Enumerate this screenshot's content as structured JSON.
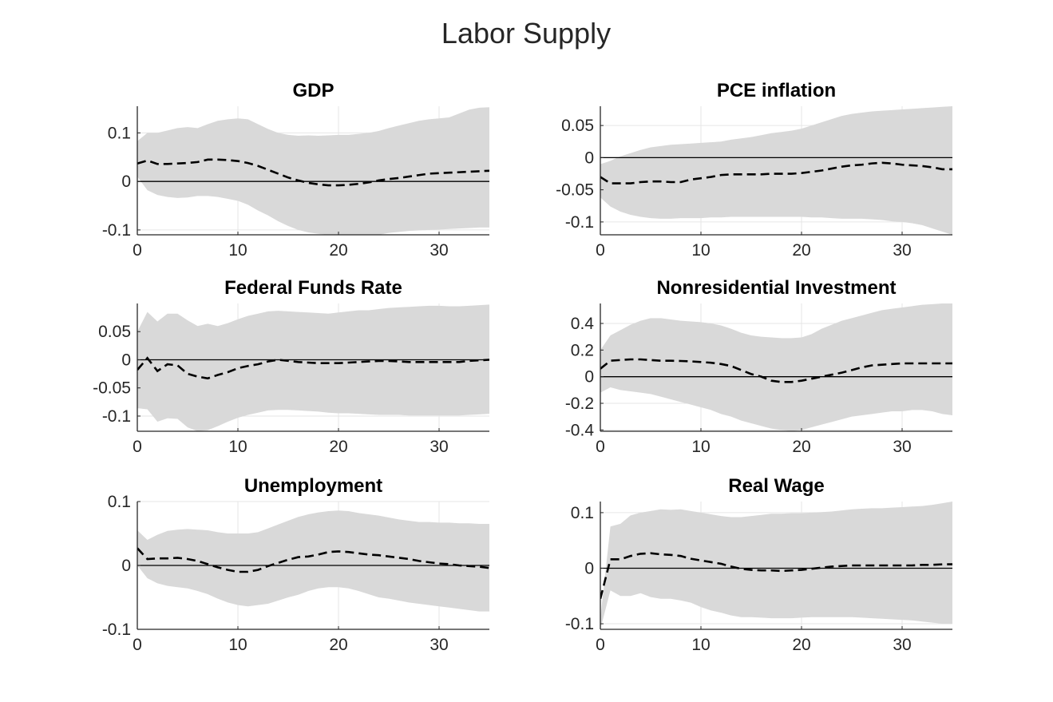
{
  "figure": {
    "title": "Labor Supply"
  },
  "colors": {
    "band": "#d9d9d9",
    "median": "#000000",
    "zero_line": "#000000",
    "grid": "#e6e6e6",
    "axis": "#262626"
  },
  "chart_data": [
    {
      "type": "area",
      "title": "GDP",
      "xlabel": "",
      "ylabel": "",
      "xlim": [
        0,
        35
      ],
      "ylim": [
        -0.11,
        0.155
      ],
      "xticks": [
        0,
        10,
        20,
        30
      ],
      "xtick_labels": [
        "0",
        "10",
        "20",
        "30"
      ],
      "yticks": [
        -0.1,
        0,
        0.1
      ],
      "ytick_labels": [
        "-0.1",
        "0",
        "0.1"
      ],
      "grid": true,
      "x": [
        0,
        1,
        2,
        3,
        4,
        5,
        6,
        7,
        8,
        9,
        10,
        11,
        12,
        13,
        14,
        15,
        16,
        17,
        18,
        19,
        20,
        21,
        22,
        23,
        24,
        25,
        26,
        27,
        28,
        29,
        30,
        31,
        32,
        33,
        34,
        35
      ],
      "median": [
        0.037,
        0.043,
        0.036,
        0.036,
        0.037,
        0.038,
        0.04,
        0.045,
        0.045,
        0.044,
        0.042,
        0.038,
        0.032,
        0.024,
        0.016,
        0.008,
        0.002,
        -0.003,
        -0.006,
        -0.008,
        -0.008,
        -0.007,
        -0.005,
        -0.002,
        0.002,
        0.005,
        0.007,
        0.01,
        0.013,
        0.016,
        0.017,
        0.018,
        0.019,
        0.02,
        0.021,
        0.022
      ],
      "upper": [
        0.083,
        0.1,
        0.1,
        0.105,
        0.11,
        0.112,
        0.11,
        0.118,
        0.125,
        0.128,
        0.13,
        0.128,
        0.118,
        0.108,
        0.1,
        0.096,
        0.094,
        0.095,
        0.094,
        0.095,
        0.096,
        0.096,
        0.098,
        0.1,
        0.104,
        0.11,
        0.115,
        0.12,
        0.125,
        0.128,
        0.13,
        0.132,
        0.14,
        0.148,
        0.152,
        0.153
      ],
      "lower": [
        0.01,
        -0.018,
        -0.028,
        -0.032,
        -0.034,
        -0.033,
        -0.03,
        -0.03,
        -0.032,
        -0.036,
        -0.04,
        -0.048,
        -0.06,
        -0.07,
        -0.082,
        -0.092,
        -0.1,
        -0.105,
        -0.108,
        -0.11,
        -0.11,
        -0.11,
        -0.11,
        -0.11,
        -0.11,
        -0.106,
        -0.104,
        -0.102,
        -0.101,
        -0.1,
        -0.099,
        -0.098,
        -0.097,
        -0.096,
        -0.095,
        -0.095
      ],
      "zero_line": true
    },
    {
      "type": "area",
      "title": "PCE inflation",
      "xlabel": "",
      "ylabel": "",
      "xlim": [
        0,
        35
      ],
      "ylim": [
        -0.12,
        0.08
      ],
      "xticks": [
        0,
        10,
        20,
        30
      ],
      "xtick_labels": [
        "0",
        "10",
        "20",
        "30"
      ],
      "yticks": [
        -0.1,
        -0.05,
        0,
        0.05
      ],
      "ytick_labels": [
        "-0.1",
        "-0.05",
        "0",
        "0.05"
      ],
      "grid": true,
      "x": [
        0,
        1,
        2,
        3,
        4,
        5,
        6,
        7,
        8,
        9,
        10,
        11,
        12,
        13,
        14,
        15,
        16,
        17,
        18,
        19,
        20,
        21,
        22,
        23,
        24,
        25,
        26,
        27,
        28,
        29,
        30,
        31,
        32,
        33,
        34,
        35
      ],
      "median": [
        -0.03,
        -0.04,
        -0.04,
        -0.04,
        -0.038,
        -0.037,
        -0.037,
        -0.038,
        -0.038,
        -0.034,
        -0.032,
        -0.03,
        -0.027,
        -0.026,
        -0.026,
        -0.026,
        -0.026,
        -0.025,
        -0.025,
        -0.025,
        -0.024,
        -0.022,
        -0.02,
        -0.017,
        -0.014,
        -0.012,
        -0.011,
        -0.009,
        -0.008,
        -0.009,
        -0.011,
        -0.012,
        -0.013,
        -0.015,
        -0.018,
        -0.018
      ],
      "upper": [
        -0.01,
        -0.005,
        0.002,
        0.007,
        0.012,
        0.016,
        0.018,
        0.02,
        0.021,
        0.022,
        0.023,
        0.024,
        0.025,
        0.028,
        0.03,
        0.032,
        0.035,
        0.038,
        0.04,
        0.042,
        0.045,
        0.05,
        0.055,
        0.06,
        0.065,
        0.068,
        0.07,
        0.072,
        0.073,
        0.074,
        0.075,
        0.076,
        0.077,
        0.078,
        0.079,
        0.08
      ],
      "lower": [
        -0.062,
        -0.076,
        -0.084,
        -0.089,
        -0.092,
        -0.094,
        -0.095,
        -0.095,
        -0.094,
        -0.094,
        -0.094,
        -0.093,
        -0.093,
        -0.092,
        -0.092,
        -0.092,
        -0.092,
        -0.092,
        -0.092,
        -0.092,
        -0.092,
        -0.093,
        -0.093,
        -0.094,
        -0.095,
        -0.095,
        -0.095,
        -0.096,
        -0.097,
        -0.099,
        -0.1,
        -0.102,
        -0.105,
        -0.11,
        -0.115,
        -0.12
      ],
      "zero_line": true
    },
    {
      "type": "area",
      "title": "Federal Funds Rate",
      "xlabel": "",
      "ylabel": "",
      "xlim": [
        0,
        35
      ],
      "ylim": [
        -0.127,
        0.1
      ],
      "xticks": [
        0,
        10,
        20,
        30
      ],
      "xtick_labels": [
        "0",
        "10",
        "20",
        "30"
      ],
      "yticks": [
        -0.1,
        -0.05,
        0,
        0.05
      ],
      "ytick_labels": [
        "-0.1",
        "-0.05",
        "0",
        "0.05"
      ],
      "grid": true,
      "x": [
        0,
        1,
        2,
        3,
        4,
        5,
        6,
        7,
        8,
        9,
        10,
        11,
        12,
        13,
        14,
        15,
        16,
        17,
        18,
        19,
        20,
        21,
        22,
        23,
        24,
        25,
        26,
        27,
        28,
        29,
        30,
        31,
        32,
        33,
        34,
        35
      ],
      "median": [
        -0.018,
        0.003,
        -0.02,
        -0.008,
        -0.01,
        -0.025,
        -0.03,
        -0.033,
        -0.027,
        -0.022,
        -0.015,
        -0.011,
        -0.008,
        -0.003,
        0.0,
        -0.002,
        -0.004,
        -0.005,
        -0.006,
        -0.006,
        -0.006,
        -0.005,
        -0.004,
        -0.003,
        -0.002,
        -0.002,
        -0.003,
        -0.004,
        -0.004,
        -0.004,
        -0.004,
        -0.004,
        -0.004,
        -0.002,
        -0.001,
        0.0
      ],
      "upper": [
        0.05,
        0.085,
        0.068,
        0.082,
        0.082,
        0.07,
        0.06,
        0.064,
        0.06,
        0.065,
        0.072,
        0.078,
        0.082,
        0.086,
        0.087,
        0.086,
        0.085,
        0.084,
        0.083,
        0.082,
        0.084,
        0.086,
        0.088,
        0.088,
        0.09,
        0.092,
        0.093,
        0.094,
        0.095,
        0.096,
        0.096,
        0.095,
        0.095,
        0.096,
        0.097,
        0.098
      ],
      "lower": [
        -0.086,
        -0.088,
        -0.11,
        -0.104,
        -0.105,
        -0.12,
        -0.127,
        -0.125,
        -0.118,
        -0.11,
        -0.103,
        -0.098,
        -0.094,
        -0.09,
        -0.089,
        -0.089,
        -0.09,
        -0.091,
        -0.092,
        -0.094,
        -0.095,
        -0.095,
        -0.096,
        -0.097,
        -0.098,
        -0.098,
        -0.098,
        -0.099,
        -0.099,
        -0.099,
        -0.099,
        -0.099,
        -0.099,
        -0.098,
        -0.097,
        -0.096
      ],
      "zero_line": true
    },
    {
      "type": "area",
      "title": "Nonresidential Investment",
      "xlabel": "",
      "ylabel": "",
      "xlim": [
        0,
        35
      ],
      "ylim": [
        -0.41,
        0.55
      ],
      "xticks": [
        0,
        10,
        20,
        30
      ],
      "xtick_labels": [
        "0",
        "10",
        "20",
        "30"
      ],
      "yticks": [
        -0.4,
        -0.2,
        0,
        0.2,
        0.4
      ],
      "ytick_labels": [
        "-0.4",
        "-0.2",
        "0",
        "0.2",
        "0.4"
      ],
      "grid": true,
      "x": [
        0,
        1,
        2,
        3,
        4,
        5,
        6,
        7,
        8,
        9,
        10,
        11,
        12,
        13,
        14,
        15,
        16,
        17,
        18,
        19,
        20,
        21,
        22,
        23,
        24,
        25,
        26,
        27,
        28,
        29,
        30,
        31,
        32,
        33,
        34,
        35
      ],
      "median": [
        0.06,
        0.12,
        0.125,
        0.13,
        0.13,
        0.125,
        0.12,
        0.12,
        0.118,
        0.115,
        0.11,
        0.105,
        0.095,
        0.08,
        0.05,
        0.02,
        0.0,
        -0.03,
        -0.04,
        -0.04,
        -0.03,
        -0.015,
        0.0,
        0.015,
        0.03,
        0.05,
        0.07,
        0.085,
        0.09,
        0.095,
        0.1,
        0.1,
        0.1,
        0.1,
        0.1,
        0.1
      ],
      "upper": [
        0.2,
        0.31,
        0.35,
        0.39,
        0.42,
        0.44,
        0.44,
        0.43,
        0.42,
        0.415,
        0.41,
        0.4,
        0.385,
        0.36,
        0.33,
        0.31,
        0.3,
        0.295,
        0.29,
        0.29,
        0.295,
        0.32,
        0.36,
        0.39,
        0.42,
        0.44,
        0.46,
        0.48,
        0.5,
        0.51,
        0.52,
        0.53,
        0.54,
        0.545,
        0.55,
        0.55
      ],
      "lower": [
        -0.12,
        -0.08,
        -0.1,
        -0.11,
        -0.12,
        -0.13,
        -0.15,
        -0.17,
        -0.19,
        -0.21,
        -0.23,
        -0.25,
        -0.28,
        -0.3,
        -0.33,
        -0.35,
        -0.37,
        -0.39,
        -0.4,
        -0.41,
        -0.4,
        -0.38,
        -0.36,
        -0.34,
        -0.32,
        -0.3,
        -0.29,
        -0.28,
        -0.27,
        -0.26,
        -0.26,
        -0.25,
        -0.25,
        -0.26,
        -0.28,
        -0.29
      ],
      "zero_line": true
    },
    {
      "type": "area",
      "title": "Unemployment",
      "xlabel": "",
      "ylabel": "",
      "xlim": [
        0,
        35
      ],
      "ylim": [
        -0.1,
        0.1
      ],
      "xticks": [
        0,
        10,
        20,
        30
      ],
      "xtick_labels": [
        "0",
        "10",
        "20",
        "30"
      ],
      "yticks": [
        -0.1,
        0,
        0.1
      ],
      "ytick_labels": [
        "-0.1",
        "0",
        "0.1"
      ],
      "grid": true,
      "x": [
        0,
        1,
        2,
        3,
        4,
        5,
        6,
        7,
        8,
        9,
        10,
        11,
        12,
        13,
        14,
        15,
        16,
        17,
        18,
        19,
        20,
        21,
        22,
        23,
        24,
        25,
        26,
        27,
        28,
        29,
        30,
        31,
        32,
        33,
        34,
        35
      ],
      "median": [
        0.027,
        0.01,
        0.011,
        0.011,
        0.012,
        0.01,
        0.007,
        0.002,
        -0.003,
        -0.007,
        -0.01,
        -0.01,
        -0.007,
        -0.001,
        0.004,
        0.009,
        0.013,
        0.014,
        0.017,
        0.021,
        0.022,
        0.021,
        0.019,
        0.017,
        0.016,
        0.014,
        0.012,
        0.01,
        0.007,
        0.005,
        0.003,
        0.002,
        0.0,
        -0.001,
        -0.002,
        -0.004
      ],
      "upper": [
        0.055,
        0.04,
        0.048,
        0.054,
        0.056,
        0.057,
        0.056,
        0.055,
        0.052,
        0.05,
        0.05,
        0.05,
        0.052,
        0.058,
        0.064,
        0.07,
        0.076,
        0.08,
        0.083,
        0.085,
        0.086,
        0.085,
        0.082,
        0.08,
        0.078,
        0.075,
        0.072,
        0.07,
        0.068,
        0.068,
        0.067,
        0.067,
        0.066,
        0.066,
        0.065,
        0.065
      ],
      "lower": [
        0.0,
        -0.02,
        -0.028,
        -0.032,
        -0.034,
        -0.036,
        -0.04,
        -0.045,
        -0.052,
        -0.058,
        -0.062,
        -0.064,
        -0.062,
        -0.06,
        -0.055,
        -0.05,
        -0.046,
        -0.04,
        -0.036,
        -0.034,
        -0.034,
        -0.036,
        -0.04,
        -0.045,
        -0.05,
        -0.052,
        -0.055,
        -0.058,
        -0.06,
        -0.062,
        -0.064,
        -0.066,
        -0.068,
        -0.07,
        -0.072,
        -0.072
      ],
      "zero_line": true
    },
    {
      "type": "area",
      "title": "Real Wage",
      "xlabel": "",
      "ylabel": "",
      "xlim": [
        0,
        35
      ],
      "ylim": [
        -0.11,
        0.12
      ],
      "xticks": [
        0,
        10,
        20,
        30
      ],
      "xtick_labels": [
        "0",
        "10",
        "20",
        "30"
      ],
      "yticks": [
        -0.1,
        0,
        0.1
      ],
      "ytick_labels": [
        "-0.1",
        "0",
        "0.1"
      ],
      "grid": true,
      "x": [
        0,
        1,
        2,
        3,
        4,
        5,
        6,
        7,
        8,
        9,
        10,
        11,
        12,
        13,
        14,
        15,
        16,
        17,
        18,
        19,
        20,
        21,
        22,
        23,
        24,
        25,
        26,
        27,
        28,
        29,
        30,
        31,
        32,
        33,
        34,
        35
      ],
      "median": [
        -0.055,
        0.016,
        0.016,
        0.022,
        0.026,
        0.027,
        0.025,
        0.024,
        0.022,
        0.017,
        0.014,
        0.011,
        0.008,
        0.003,
        -0.001,
        -0.003,
        -0.004,
        -0.004,
        -0.005,
        -0.004,
        -0.003,
        -0.001,
        0.001,
        0.003,
        0.004,
        0.005,
        0.005,
        0.005,
        0.005,
        0.005,
        0.005,
        0.005,
        0.006,
        0.006,
        0.007,
        0.007
      ],
      "upper": [
        -0.09,
        0.075,
        0.08,
        0.095,
        0.1,
        0.103,
        0.106,
        0.105,
        0.106,
        0.103,
        0.1,
        0.097,
        0.094,
        0.092,
        0.092,
        0.094,
        0.096,
        0.098,
        0.098,
        0.099,
        0.099,
        0.1,
        0.101,
        0.102,
        0.104,
        0.106,
        0.107,
        0.108,
        0.108,
        0.109,
        0.11,
        0.111,
        0.112,
        0.114,
        0.117,
        0.12
      ],
      "lower": [
        -0.11,
        -0.04,
        -0.05,
        -0.05,
        -0.045,
        -0.052,
        -0.055,
        -0.055,
        -0.058,
        -0.062,
        -0.07,
        -0.076,
        -0.08,
        -0.085,
        -0.088,
        -0.088,
        -0.089,
        -0.09,
        -0.09,
        -0.09,
        -0.089,
        -0.088,
        -0.088,
        -0.088,
        -0.088,
        -0.088,
        -0.089,
        -0.09,
        -0.091,
        -0.092,
        -0.093,
        -0.094,
        -0.096,
        -0.098,
        -0.1,
        -0.1
      ],
      "zero_line": true
    }
  ]
}
